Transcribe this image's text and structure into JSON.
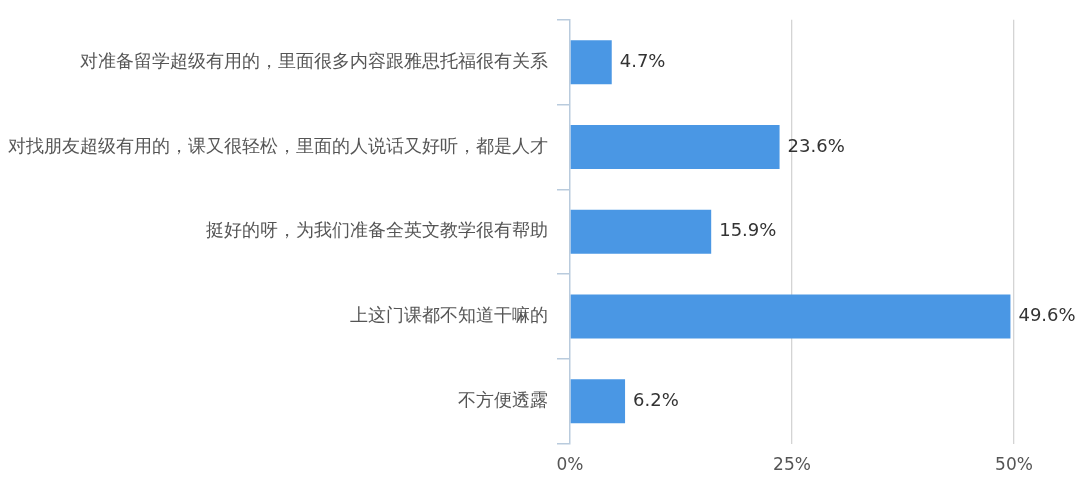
{
  "chart_data": {
    "type": "bar",
    "orientation": "horizontal",
    "categories": [
      "对准备留学超级有用的，里面很多内容跟雅思托福很有关系",
      "对找朋友超级有用的，课又很轻松，里面的人说话又好听，都是人才",
      "挺好的呀，为我们准备全英文教学很有帮助",
      "上这门课都不知道干嘛的",
      "不方便透露"
    ],
    "values": [
      4.7,
      23.6,
      15.9,
      49.6,
      6.2
    ],
    "value_labels": [
      "4.7%",
      "23.6%",
      "15.9%",
      "49.6%",
      "6.2%"
    ],
    "color": "#4a97e4",
    "xlim": [
      0,
      50
    ],
    "xticks": [
      {
        "value": 0,
        "label": "0%"
      },
      {
        "value": 25,
        "label": "25%"
      },
      {
        "value": 50,
        "label": "50%"
      }
    ],
    "grid": "x"
  }
}
